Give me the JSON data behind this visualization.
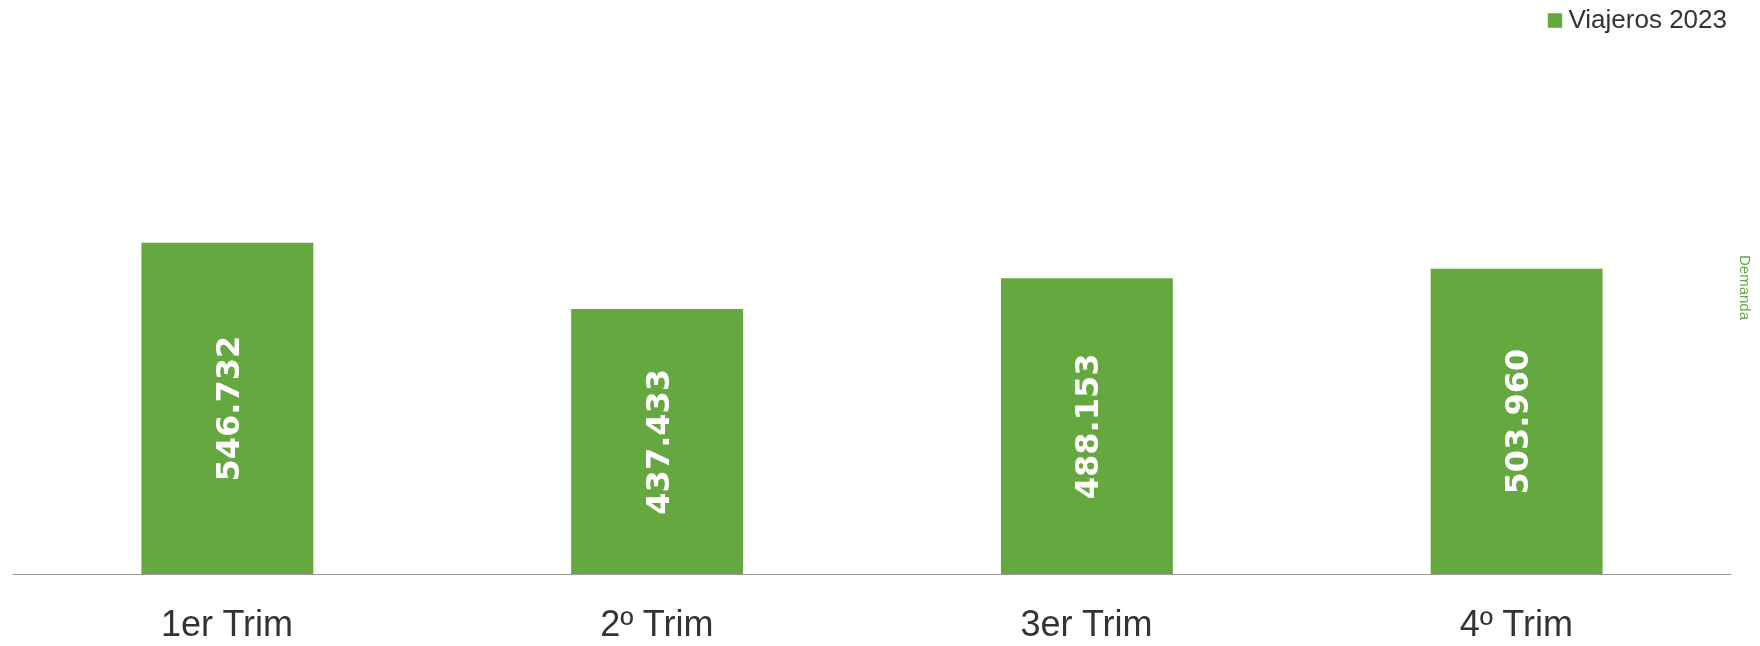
{
  "chart_data": {
    "type": "bar",
    "categories": [
      "1er Trim",
      "2º Trim",
      "3er Trim",
      "4º Trim"
    ],
    "series": [
      {
        "name": "Viajeros 2023",
        "color": "#66a840",
        "values": [
          546732,
          437433,
          488153,
          503960
        ],
        "value_labels": [
          "546.732",
          "437.433",
          "488.153",
          "503.960"
        ]
      }
    ],
    "legend": "top right",
    "annotations": [
      "Demanda"
    ]
  }
}
